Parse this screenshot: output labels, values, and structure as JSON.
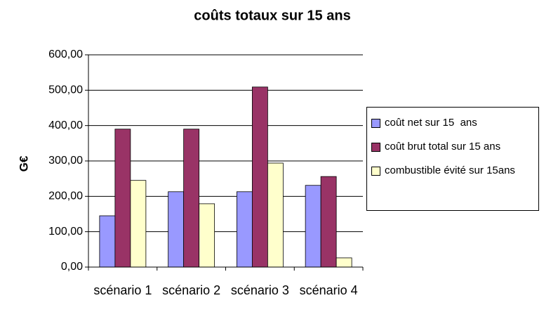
{
  "chart_data": {
    "type": "bar",
    "title": "coûts  totaux sur 15 ans",
    "y_label": "G€",
    "categories": [
      "scénario 1",
      "scénario 2",
      "scénario 3",
      "scénario 4"
    ],
    "series": [
      {
        "name": "coût net sur 15  ans",
        "color": "#9999ff",
        "values": [
          145,
          213,
          213,
          231
        ]
      },
      {
        "name": "coût brut total sur 15 ans",
        "color": "#993366",
        "values": [
          390,
          390,
          509,
          256
        ]
      },
      {
        "name": "combustible évité sur 15ans",
        "color": "#ffffcc",
        "values": [
          245,
          179,
          294,
          26
        ]
      }
    ],
    "ylim": [
      0,
      600
    ],
    "yticks": [
      {
        "value": 0,
        "label": "0,00"
      },
      {
        "value": 100,
        "label": "100,00"
      },
      {
        "value": 200,
        "label": "200,00"
      },
      {
        "value": 300,
        "label": "300,00"
      },
      {
        "value": 400,
        "label": "400,00"
      },
      {
        "value": 500,
        "label": "500,00"
      },
      {
        "value": 600,
        "label": "600,00"
      }
    ],
    "grid": true,
    "legend": "right"
  }
}
